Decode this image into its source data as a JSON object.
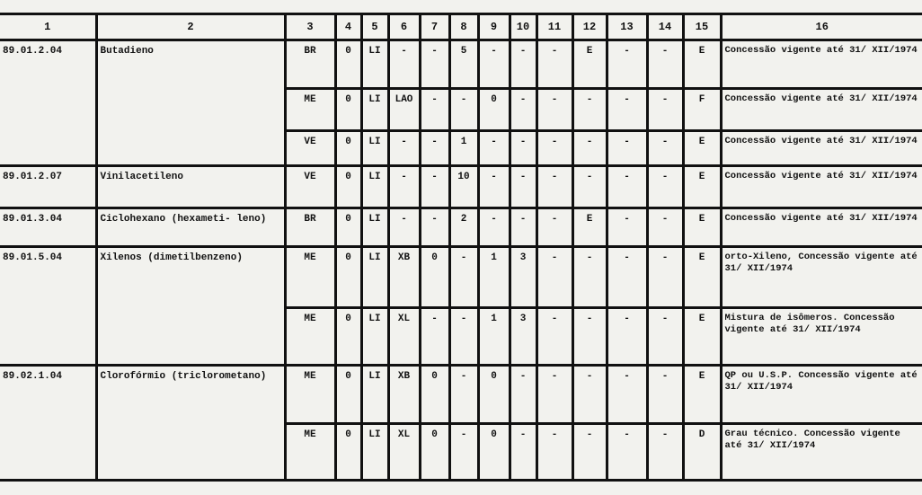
{
  "headers": [
    "1",
    "2",
    "3",
    "4",
    "5",
    "6",
    "7",
    "8",
    "9",
    "10",
    "11",
    "12",
    "13",
    "14",
    "15",
    "16"
  ],
  "entries": [
    {
      "code": "89.01.2.04",
      "name": "Butadieno",
      "rows": [
        {
          "cells": [
            "BR",
            "0",
            "LI",
            "-",
            "-",
            "5",
            "-",
            "-",
            "-",
            "E",
            "-",
            "-",
            "E"
          ],
          "note": "Concessão vigente até 31/ XII/1974"
        },
        {
          "cells": [
            "ME",
            "0",
            "LI",
            "LAO",
            "-",
            "-",
            "0",
            "-",
            "-",
            "-",
            "-",
            "-",
            "F"
          ],
          "note": "Concessão vigente até 31/ XII/1974"
        },
        {
          "cells": [
            "VE",
            "0",
            "LI",
            "-",
            "-",
            "1",
            "-",
            "-",
            "-",
            "-",
            "-",
            "-",
            "E"
          ],
          "note": "Concessão vigente até 31/ XII/1974"
        }
      ]
    },
    {
      "code": "89.01.2.07",
      "name": "Vinilacetileno",
      "rows": [
        {
          "cells": [
            "VE",
            "0",
            "LI",
            "-",
            "-",
            "10",
            "-",
            "-",
            "-",
            "-",
            "-",
            "-",
            "E"
          ],
          "note": "Concessão vigente até 31/ XII/1974"
        }
      ]
    },
    {
      "code": "89.01.3.04",
      "name": "Ciclohexano (hexameti- leno)",
      "rows": [
        {
          "cells": [
            "BR",
            "0",
            "LI",
            "-",
            "-",
            "2",
            "-",
            "-",
            "-",
            "E",
            "-",
            "-",
            "E"
          ],
          "note": "Concessão vigente até 31/ XII/1974"
        }
      ]
    },
    {
      "code": "89.01.5.04",
      "name": "Xilenos (dimetilbenzeno)",
      "rows": [
        {
          "cells": [
            "ME",
            "0",
            "LI",
            "XB",
            "0",
            "-",
            "1",
            "3",
            "-",
            "-",
            "-",
            "-",
            "E"
          ],
          "note": "orto-Xileno, Concessão vigente até 31/ XII/1974"
        },
        {
          "cells": [
            "ME",
            "0",
            "LI",
            "XL",
            "-",
            "-",
            "1",
            "3",
            "-",
            "-",
            "-",
            "-",
            "E"
          ],
          "note": "Mistura de isômeros. Concessão vigente até 31/ XII/1974"
        }
      ]
    },
    {
      "code": "89.02.1.04",
      "name": "Clorofórmio (triclorometano)",
      "rows": [
        {
          "cells": [
            "ME",
            "0",
            "LI",
            "XB",
            "0",
            "-",
            "0",
            "-",
            "-",
            "-",
            "-",
            "-",
            "E"
          ],
          "note": "QP ou U.S.P. Concessão vigente até 31/ XII/1974"
        },
        {
          "cells": [
            "ME",
            "0",
            "LI",
            "XL",
            "0",
            "-",
            "0",
            "-",
            "-",
            "-",
            "-",
            "-",
            "D"
          ],
          "note": "Grau técnico. Concessão vigente até 31/ XII/1974"
        }
      ]
    }
  ]
}
